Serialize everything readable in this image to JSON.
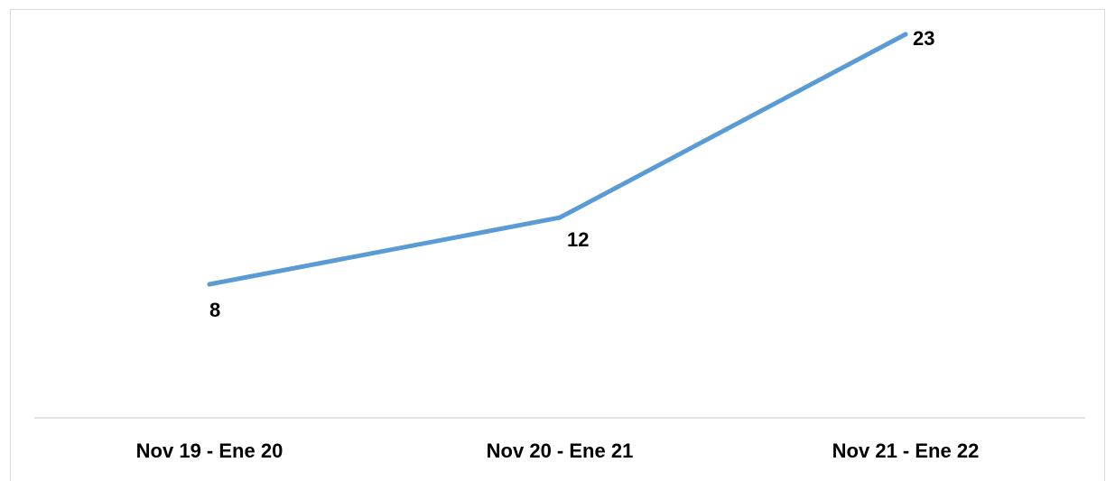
{
  "chart_data": {
    "type": "line",
    "categories": [
      "Nov 19 - Ene 20",
      "Nov 20 - Ene 21",
      "Nov 21 - Ene 22"
    ],
    "series": [
      {
        "values": [
          8,
          12,
          23
        ],
        "color": "#5b9bd5"
      }
    ],
    "data_labels": [
      "8",
      "12",
      "23"
    ],
    "ylim": [
      0,
      25
    ],
    "grid": false,
    "legend": "none"
  }
}
